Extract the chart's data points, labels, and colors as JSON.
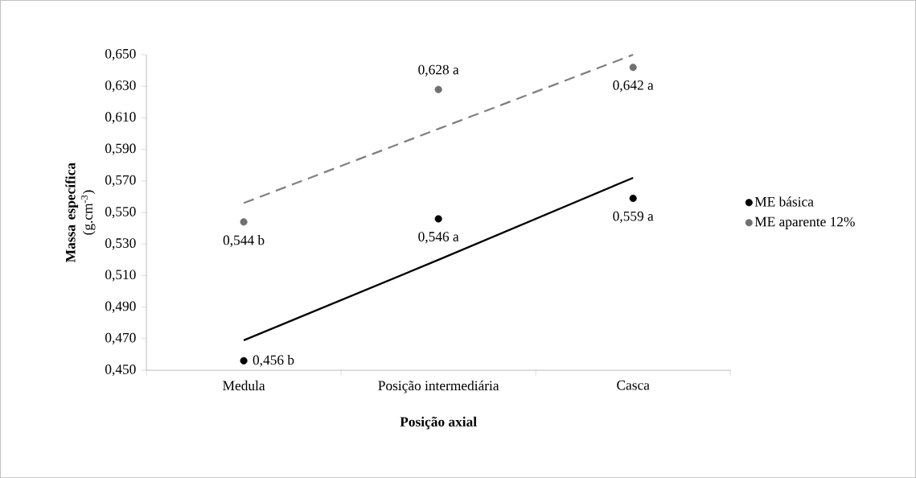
{
  "chart_data": {
    "type": "scatter",
    "xlabel": "Posição axial",
    "ylabel": "**Massa específica** (g.cm$^{-3}$)",
    "categories": [
      "Medula",
      "Posição intermediária",
      "Casca"
    ],
    "series": [
      {
        "name": "ME básica",
        "color": "#000000",
        "marker": "circle",
        "values": [
          0.456,
          0.546,
          0.559
        ],
        "value_labels": [
          "0,456 b",
          "0,546 a",
          "0,559 a"
        ]
      },
      {
        "name": "ME aparente 12%",
        "color": "#707070",
        "marker": "circle",
        "values": [
          0.544,
          0.628,
          0.642
        ],
        "value_labels": [
          "0,544 b",
          "0,628 a",
          "0,642 a"
        ]
      },
      {
        "type": "line",
        "color": "#000000",
        "line_style": "solid",
        "marker": "none",
        "values": [
          0.469,
          0.52,
          0.572
        ]
      },
      {
        "type": "line",
        "color": "#808080",
        "line_style": "dashed",
        "marker": "none",
        "values": [
          0.556,
          0.603,
          0.65
        ]
      }
    ],
    "ylim": [
      0.45,
      0.65
    ],
    "yticks": [
      {
        "value": 0.45,
        "label": "0,450"
      },
      {
        "value": 0.47,
        "label": "0,470"
      },
      {
        "value": 0.49,
        "label": "0,490"
      },
      {
        "value": 0.51,
        "label": "0,510"
      },
      {
        "value": 0.53,
        "label": "0,530"
      },
      {
        "value": 0.55,
        "label": "0,550"
      },
      {
        "value": 0.57,
        "label": "0,570"
      },
      {
        "value": 0.59,
        "label": "0,590"
      },
      {
        "value": 0.61,
        "label": "0,610"
      },
      {
        "value": 0.63,
        "label": "0,630"
      },
      {
        "value": 0.65,
        "label": "0,650"
      }
    ],
    "grid": false,
    "legend": "right"
  }
}
